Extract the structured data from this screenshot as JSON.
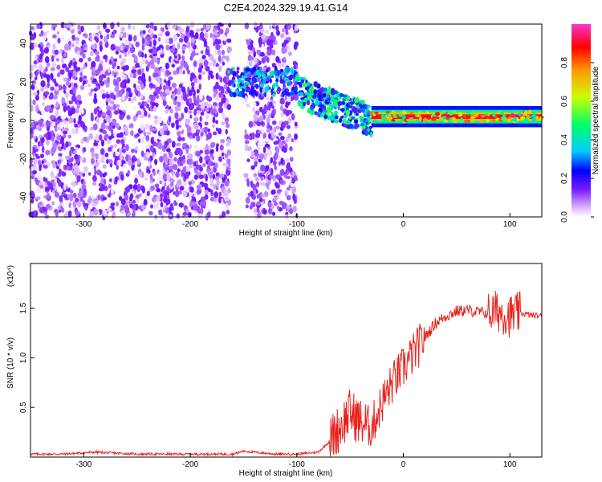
{
  "title": "C2E4.2024.329.19.41.G14",
  "chart_data": [
    {
      "type": "heatmap",
      "xlabel": "Height of straight line (km)",
      "ylabel": "Frequency (Hz)",
      "xlim": [
        -350,
        130
      ],
      "ylim": [
        -50,
        50
      ],
      "xticks": [
        -300,
        -200,
        -100,
        0,
        100
      ],
      "yticks": [
        -40,
        -20,
        0,
        20,
        40
      ],
      "colorbar": {
        "label": "Normalized spectral amplitude",
        "range": [
          0,
          1
        ],
        "ticks": [
          0.0,
          0.2,
          0.4,
          0.6,
          0.8
        ],
        "colormap": [
          "#ffffff",
          "#d9b3ff",
          "#7a1cff",
          "#0000ff",
          "#00ccff",
          "#00ff66",
          "#ccff00",
          "#ff9900",
          "#ff0000",
          "#ff33cc"
        ]
      },
      "regions": [
        {
          "x_range": [
            -350,
            -163
          ],
          "description": "broadband noise, all frequencies"
        },
        {
          "x_range": [
            -163,
            -100
          ],
          "freq_center": 20,
          "note": "weak signal near 20 Hz"
        },
        {
          "x_range": [
            -100,
            -30
          ],
          "freq_center_start": 15,
          "freq_center_end": 0,
          "note": "signal drifts toward 0 Hz"
        },
        {
          "x_range": [
            -30,
            130
          ],
          "freq_center": 2,
          "peak_amplitude": 0.95,
          "note": "strong narrow tone"
        }
      ]
    },
    {
      "type": "line",
      "xlabel": "Height of straight line (km)",
      "ylabel": "SNR (10 * v/v)",
      "y_multiplier": "(x10⁴)",
      "xlim": [
        -350,
        130
      ],
      "ylim": [
        0,
        1.95
      ],
      "xticks": [
        -300,
        -200,
        -100,
        0,
        100
      ],
      "yticks": [
        0.5,
        1.0,
        1.5
      ],
      "color": "#e8221c",
      "x": [
        -350,
        -320,
        -290,
        -250,
        -200,
        -160,
        -150,
        -120,
        -100,
        -80,
        -70,
        -60,
        -50,
        -40,
        -30,
        -20,
        -10,
        0,
        10,
        20,
        30,
        40,
        50,
        60,
        70,
        80,
        90,
        100,
        110,
        120,
        130
      ],
      "y": [
        0.03,
        0.03,
        0.05,
        0.03,
        0.03,
        0.03,
        0.06,
        0.03,
        0.03,
        0.05,
        0.15,
        0.3,
        0.45,
        0.35,
        0.3,
        0.55,
        0.75,
        0.9,
        1.05,
        1.2,
        1.35,
        1.42,
        1.47,
        1.48,
        1.46,
        1.45,
        1.47,
        1.42,
        1.45,
        1.43,
        1.42
      ]
    }
  ]
}
